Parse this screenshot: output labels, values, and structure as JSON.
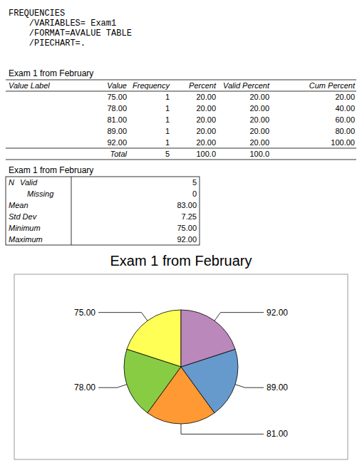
{
  "chart_data": [
    {
      "type": "text",
      "annotations": [
        "FREQUENCIES",
        "    /VARIABLES= Exam1",
        "    /FORMAT=AVALUE TABLE",
        "    /PIECHART=."
      ]
    },
    {
      "type": "table",
      "title": "Exam 1 from February",
      "categories": [
        "Value Label",
        "Value",
        "Frequency",
        "Percent",
        "Valid Percent",
        "Cum Percent"
      ],
      "rows": [
        [
          null,
          "75.00",
          "1",
          "20.00",
          "20.00",
          "20.00"
        ],
        [
          null,
          "78.00",
          "1",
          "20.00",
          "20.00",
          "40.00"
        ],
        [
          null,
          "81.00",
          "1",
          "20.00",
          "20.00",
          "60.00"
        ],
        [
          null,
          "89.00",
          "1",
          "20.00",
          "20.00",
          "80.00"
        ],
        [
          null,
          "92.00",
          "1",
          "20.00",
          "20.00",
          "100.00"
        ]
      ],
      "total": [
        null,
        "Total",
        "5",
        "100.0",
        "100.0",
        null
      ]
    },
    {
      "type": "table",
      "title": "Exam 1 from February",
      "rows": [
        [
          "N",
          "Valid",
          "5"
        ],
        [
          null,
          "Missing",
          "0"
        ],
        [
          "Mean",
          null,
          "83.00"
        ],
        [
          "Std Dev",
          null,
          "7.25"
        ],
        [
          "Minimum",
          null,
          "75.00"
        ],
        [
          "Maximum",
          null,
          "92.00"
        ]
      ]
    },
    {
      "type": "pie",
      "title": "Exam 1 from February",
      "categories": [
        "75.00",
        "78.00",
        "81.00",
        "89.00",
        "92.00"
      ],
      "values": [
        1,
        1,
        1,
        1,
        1
      ],
      "colors": [
        "#FFFF55",
        "#88CC44",
        "#FF9933",
        "#6699CC",
        "#BB88BB"
      ]
    }
  ]
}
